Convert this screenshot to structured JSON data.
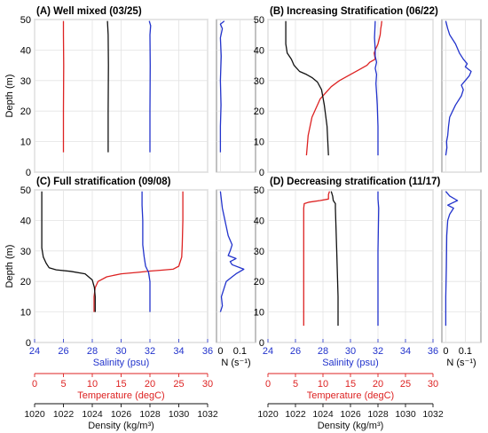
{
  "chart_data": {
    "type": "line",
    "ylabel": "Depth (m)",
    "ylim": [
      0,
      50
    ],
    "yticks": [
      0,
      10,
      20,
      30,
      40,
      50
    ],
    "n_axis": {
      "label": "N (s⁻¹)",
      "xlim": [
        -0.02,
        0.18
      ],
      "ticks": [
        0,
        0.1
      ],
      "tick_labels": [
        "0",
        "0.1"
      ]
    },
    "salinity_axis": {
      "label": "Salinity (psu)",
      "xlim": [
        24,
        36
      ],
      "ticks": [
        24,
        26,
        28,
        30,
        32,
        34,
        36
      ],
      "color": "#2233cc"
    },
    "temperature_axis": {
      "label": "Temperature (degC)",
      "xlim": [
        0,
        30
      ],
      "ticks": [
        0,
        5,
        10,
        15,
        20,
        25,
        30
      ],
      "color": "#dd2222"
    },
    "density_axis": {
      "label": "Density (kg/m³)",
      "xlim": [
        1020,
        1032
      ],
      "ticks": [
        1020,
        1022,
        1024,
        1026,
        1028,
        1030,
        1032
      ],
      "color": "#000000"
    },
    "colors": {
      "temperature": "#dd2222",
      "density": "#111111",
      "salinity": "#2233cc",
      "n": "#2233cc",
      "grid": "#e3e3e3"
    },
    "panels": [
      {
        "title": "(A) Well mixed (03/25)",
        "temperature": {
          "x": [
            5.0,
            5.0,
            5.05,
            5.0,
            5.0
          ],
          "depth": [
            6.5,
            20,
            35,
            45,
            49.5
          ]
        },
        "density": {
          "x": [
            1025.1,
            1025.1,
            1025.12,
            1025.1,
            1025.05
          ],
          "depth": [
            6.5,
            20,
            35,
            45,
            49.5
          ]
        },
        "salinity": {
          "x": [
            32.0,
            32.0,
            32.02,
            32.0,
            32.05,
            31.95
          ],
          "depth": [
            6.5,
            20,
            35,
            45,
            48,
            49.5
          ]
        },
        "n": {
          "x": [
            0.0,
            0.0,
            0.003,
            0.0,
            0.004,
            0.0,
            0.01,
            0.0,
            0.02
          ],
          "depth": [
            6.5,
            15,
            22,
            30,
            38,
            44,
            47,
            48.5,
            49.5
          ]
        }
      },
      {
        "title": "(B) Increasing Stratification (06/22)",
        "temperature": {
          "x": [
            7.0,
            7.3,
            8.0,
            9.5,
            11.5,
            13.0,
            15.0,
            16.5,
            18.0,
            18.5,
            19.5,
            19.3,
            19.5,
            20.0,
            20.4,
            20.5,
            20.6,
            20.7
          ],
          "depth": [
            5.5,
            12,
            18,
            24,
            28,
            30,
            32,
            33.5,
            35,
            36,
            37,
            39,
            40,
            42,
            45,
            47,
            48,
            49.5
          ]
        },
        "density": {
          "x": [
            1024.4,
            1024.3,
            1024.1,
            1023.9,
            1023.6,
            1023.2,
            1022.8,
            1022.3,
            1021.9,
            1021.7,
            1021.4,
            1021.3,
            1021.3,
            1021.3
          ],
          "depth": [
            5.5,
            15,
            22,
            27,
            29.5,
            31,
            32,
            33,
            35,
            37,
            39,
            42,
            45,
            49.5
          ]
        },
        "salinity": {
          "x": [
            32.0,
            32.0,
            31.95,
            31.9,
            31.85,
            31.9,
            31.8,
            31.9,
            31.8,
            31.8,
            31.75,
            31.8
          ],
          "depth": [
            5.5,
            15,
            22,
            26,
            29,
            32,
            34,
            36,
            38,
            40,
            44,
            49.5
          ]
        },
        "n": {
          "x": [
            0.0,
            0.006,
            0.004,
            0.01,
            0.014,
            0.02,
            0.05,
            0.08,
            0.09,
            0.08,
            0.1,
            0.12,
            0.13,
            0.1,
            0.11,
            0.09,
            0.07,
            0.05,
            0.02,
            0.01,
            0.0
          ],
          "depth": [
            5.5,
            8,
            10,
            12,
            15,
            18,
            22,
            25,
            27,
            28.5,
            30,
            31.5,
            33,
            34.5,
            35.5,
            37,
            39,
            42,
            45,
            47,
            49.5
          ]
        }
      },
      {
        "title": "(C) Full stratification (09/08)",
        "temperature": {
          "x": [
            10.3,
            10.3,
            10.5,
            11.0,
            12.5,
            15.0,
            18.0,
            20.0,
            22.0,
            24.0,
            25.0,
            25.5,
            25.6,
            25.7,
            25.7
          ],
          "depth": [
            10,
            15,
            18,
            20,
            21.5,
            22.5,
            23,
            23.4,
            23.7,
            24,
            25,
            28,
            32,
            40,
            49.5
          ]
        },
        "density": {
          "x": [
            1024.2,
            1024.2,
            1024.15,
            1024.0,
            1023.5,
            1022.5,
            1021.5,
            1021.0,
            1020.8,
            1020.6,
            1020.5,
            1020.5,
            1020.5
          ],
          "depth": [
            10,
            15,
            18,
            20.5,
            22.5,
            23.3,
            23.8,
            24.5,
            26,
            28,
            31,
            40,
            49.5
          ]
        },
        "salinity": {
          "x": [
            32.0,
            32.0,
            32.0,
            31.9,
            31.7,
            31.6,
            31.5,
            31.5,
            31.45,
            31.45
          ],
          "depth": [
            10,
            15,
            20,
            23,
            25,
            28,
            32,
            40,
            45,
            49.5
          ]
        },
        "n": {
          "x": [
            0.0,
            0.01,
            0.005,
            0.02,
            0.03,
            0.06,
            0.08,
            0.12,
            0.06,
            0.05,
            0.08,
            0.04,
            0.05,
            0.06,
            0.04,
            0.03,
            0.01,
            0.0
          ],
          "depth": [
            10,
            12,
            15,
            18,
            20,
            21.5,
            22.5,
            24,
            25.5,
            26.5,
            27.5,
            28.5,
            30,
            32,
            35,
            38,
            44,
            49.5
          ]
        }
      },
      {
        "title": "(D) Decreasing stratification (11/17)",
        "temperature": {
          "x": [
            6.5,
            6.5,
            6.5,
            6.5,
            6.6,
            7.5,
            9.5,
            11.0,
            11.0,
            11.2
          ],
          "depth": [
            5.5,
            15,
            30,
            44,
            45.5,
            46,
            46.5,
            47,
            48.5,
            49.5
          ]
        },
        "density": {
          "x": [
            1025.1,
            1025.1,
            1025.0,
            1024.9,
            1024.9,
            1024.75,
            1024.7,
            1024.6
          ],
          "depth": [
            5.5,
            15,
            30,
            44,
            45.5,
            46.5,
            48,
            49.5
          ]
        },
        "salinity": {
          "x": [
            32.0,
            32.0,
            32.0,
            32.05,
            32.0,
            32.0
          ],
          "depth": [
            5.5,
            15,
            30,
            44,
            47,
            49.5
          ]
        },
        "n": {
          "x": [
            0.0,
            0.0,
            0.003,
            0.005,
            0.01,
            0.02,
            0.04,
            0.01,
            0.06,
            0.02,
            0.0
          ],
          "depth": [
            5.5,
            15,
            25,
            35,
            40,
            42,
            44,
            45,
            46.5,
            48,
            49.5
          ]
        }
      }
    ]
  }
}
